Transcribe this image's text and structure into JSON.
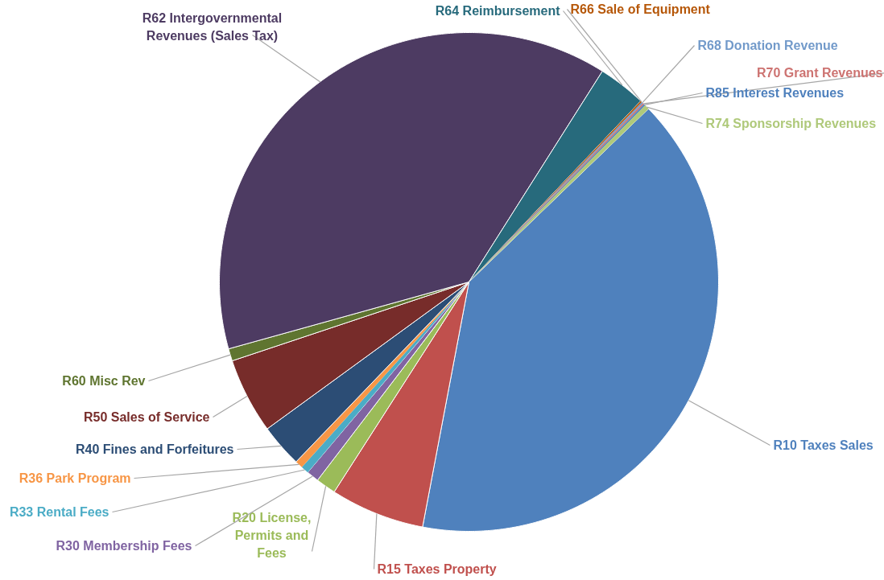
{
  "chart_data": {
    "type": "pie",
    "categories": [
      "R10 Taxes Sales",
      "R15 Taxes Property",
      "R20 License, Permits and Fees",
      "R30 Membership Fees",
      "R33 Rental Fees",
      "R36 Park Program",
      "R40 Fines and Forfeitures",
      "R50 Sales of Service",
      "R60 Misc Rev",
      "R62 Intergovernmental Revenues (Sales Tax)",
      "R64 Reimbursement",
      "R66 Sale of Equipment",
      "R68 Donation Revenue",
      "R70 Grant Revenues",
      "R85 Interest Revenues",
      "R74 Sponsorship Revenues"
    ],
    "values": [
      40.2,
      6.1,
      1.3,
      0.8,
      0.5,
      0.5,
      2.8,
      4.9,
      0.8,
      38.3,
      3.1,
      0.1,
      0.1,
      0.1,
      0.1,
      0.3
    ],
    "colors": [
      "#4f81bd",
      "#c0504d",
      "#9bbb59",
      "#8064a2",
      "#4bacc6",
      "#f79646",
      "#2c4d75",
      "#772c2a",
      "#5f7530",
      "#4d3b62",
      "#276a7c",
      "#b65708",
      "#729aca",
      "#cd7371",
      "#4f81bd",
      "#afc97a"
    ]
  }
}
